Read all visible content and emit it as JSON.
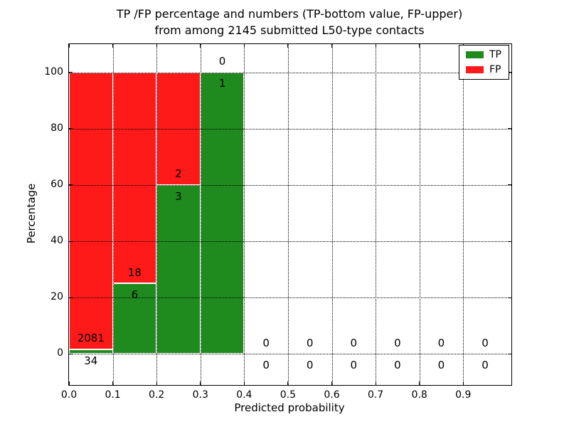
{
  "chart_data": {
    "type": "bar",
    "stacked": true,
    "title_line1": "TP /FP percentage and numbers (TP-bottom value, FP-upper)",
    "title_line2": "from among 2145 submitted L50-type contacts",
    "xlabel": "Predicted probability",
    "ylabel": "Percentage",
    "total_submitted_contacts": 2145,
    "xlim": [
      0.0,
      1.01
    ],
    "ylim": [
      -11,
      110
    ],
    "grid": "dotted",
    "legend_position": "upper-right",
    "x_tick_values": [
      0.0,
      0.1,
      0.2,
      0.3,
      0.4,
      0.5,
      0.6,
      0.7,
      0.8,
      0.9
    ],
    "x_tick_labels": [
      "0.0",
      "0.1",
      "0.2",
      "0.3",
      "0.4",
      "0.5",
      "0.6",
      "0.7",
      "0.8",
      "0.9"
    ],
    "y_tick_values": [
      0,
      20,
      40,
      60,
      80,
      100
    ],
    "y_tick_labels": [
      "0",
      "20",
      "40",
      "60",
      "80",
      "100"
    ],
    "bin_width": 0.1,
    "bins": [
      {
        "x_start": 0.0,
        "x_end": 0.1,
        "tp_count": 34,
        "fp_count": 2081,
        "tp_pct": 1.61,
        "fp_pct": 98.39
      },
      {
        "x_start": 0.1,
        "x_end": 0.2,
        "tp_count": 6,
        "fp_count": 18,
        "tp_pct": 25,
        "fp_pct": 75
      },
      {
        "x_start": 0.2,
        "x_end": 0.3,
        "tp_count": 3,
        "fp_count": 2,
        "tp_pct": 60,
        "fp_pct": 40
      },
      {
        "x_start": 0.3,
        "x_end": 0.4,
        "tp_count": 1,
        "fp_count": 0,
        "tp_pct": 100,
        "fp_pct": 0
      },
      {
        "x_start": 0.4,
        "x_end": 0.5,
        "tp_count": 0,
        "fp_count": 0,
        "tp_pct": 0,
        "fp_pct": 0
      },
      {
        "x_start": 0.5,
        "x_end": 0.6,
        "tp_count": 0,
        "fp_count": 0,
        "tp_pct": 0,
        "fp_pct": 0
      },
      {
        "x_start": 0.6,
        "x_end": 0.7,
        "tp_count": 0,
        "fp_count": 0,
        "tp_pct": 0,
        "fp_pct": 0
      },
      {
        "x_start": 0.7,
        "x_end": 0.8,
        "tp_count": 0,
        "fp_count": 0,
        "tp_pct": 0,
        "fp_pct": 0
      },
      {
        "x_start": 0.8,
        "x_end": 0.9,
        "tp_count": 0,
        "fp_count": 0,
        "tp_pct": 0,
        "fp_pct": 0
      },
      {
        "x_start": 0.9,
        "x_end": 1.0,
        "tp_count": 0,
        "fp_count": 0,
        "tp_pct": 0,
        "fp_pct": 0
      }
    ],
    "legend": [
      {
        "label": "TP",
        "color": "#1f8b1f"
      },
      {
        "label": "FP",
        "color": "#ff1a1a"
      }
    ]
  },
  "colors": {
    "tp_green": "#1f8b1f",
    "fp_red": "#ff1a1a",
    "background": "#ffffff",
    "axes_and_text": "#000000"
  }
}
